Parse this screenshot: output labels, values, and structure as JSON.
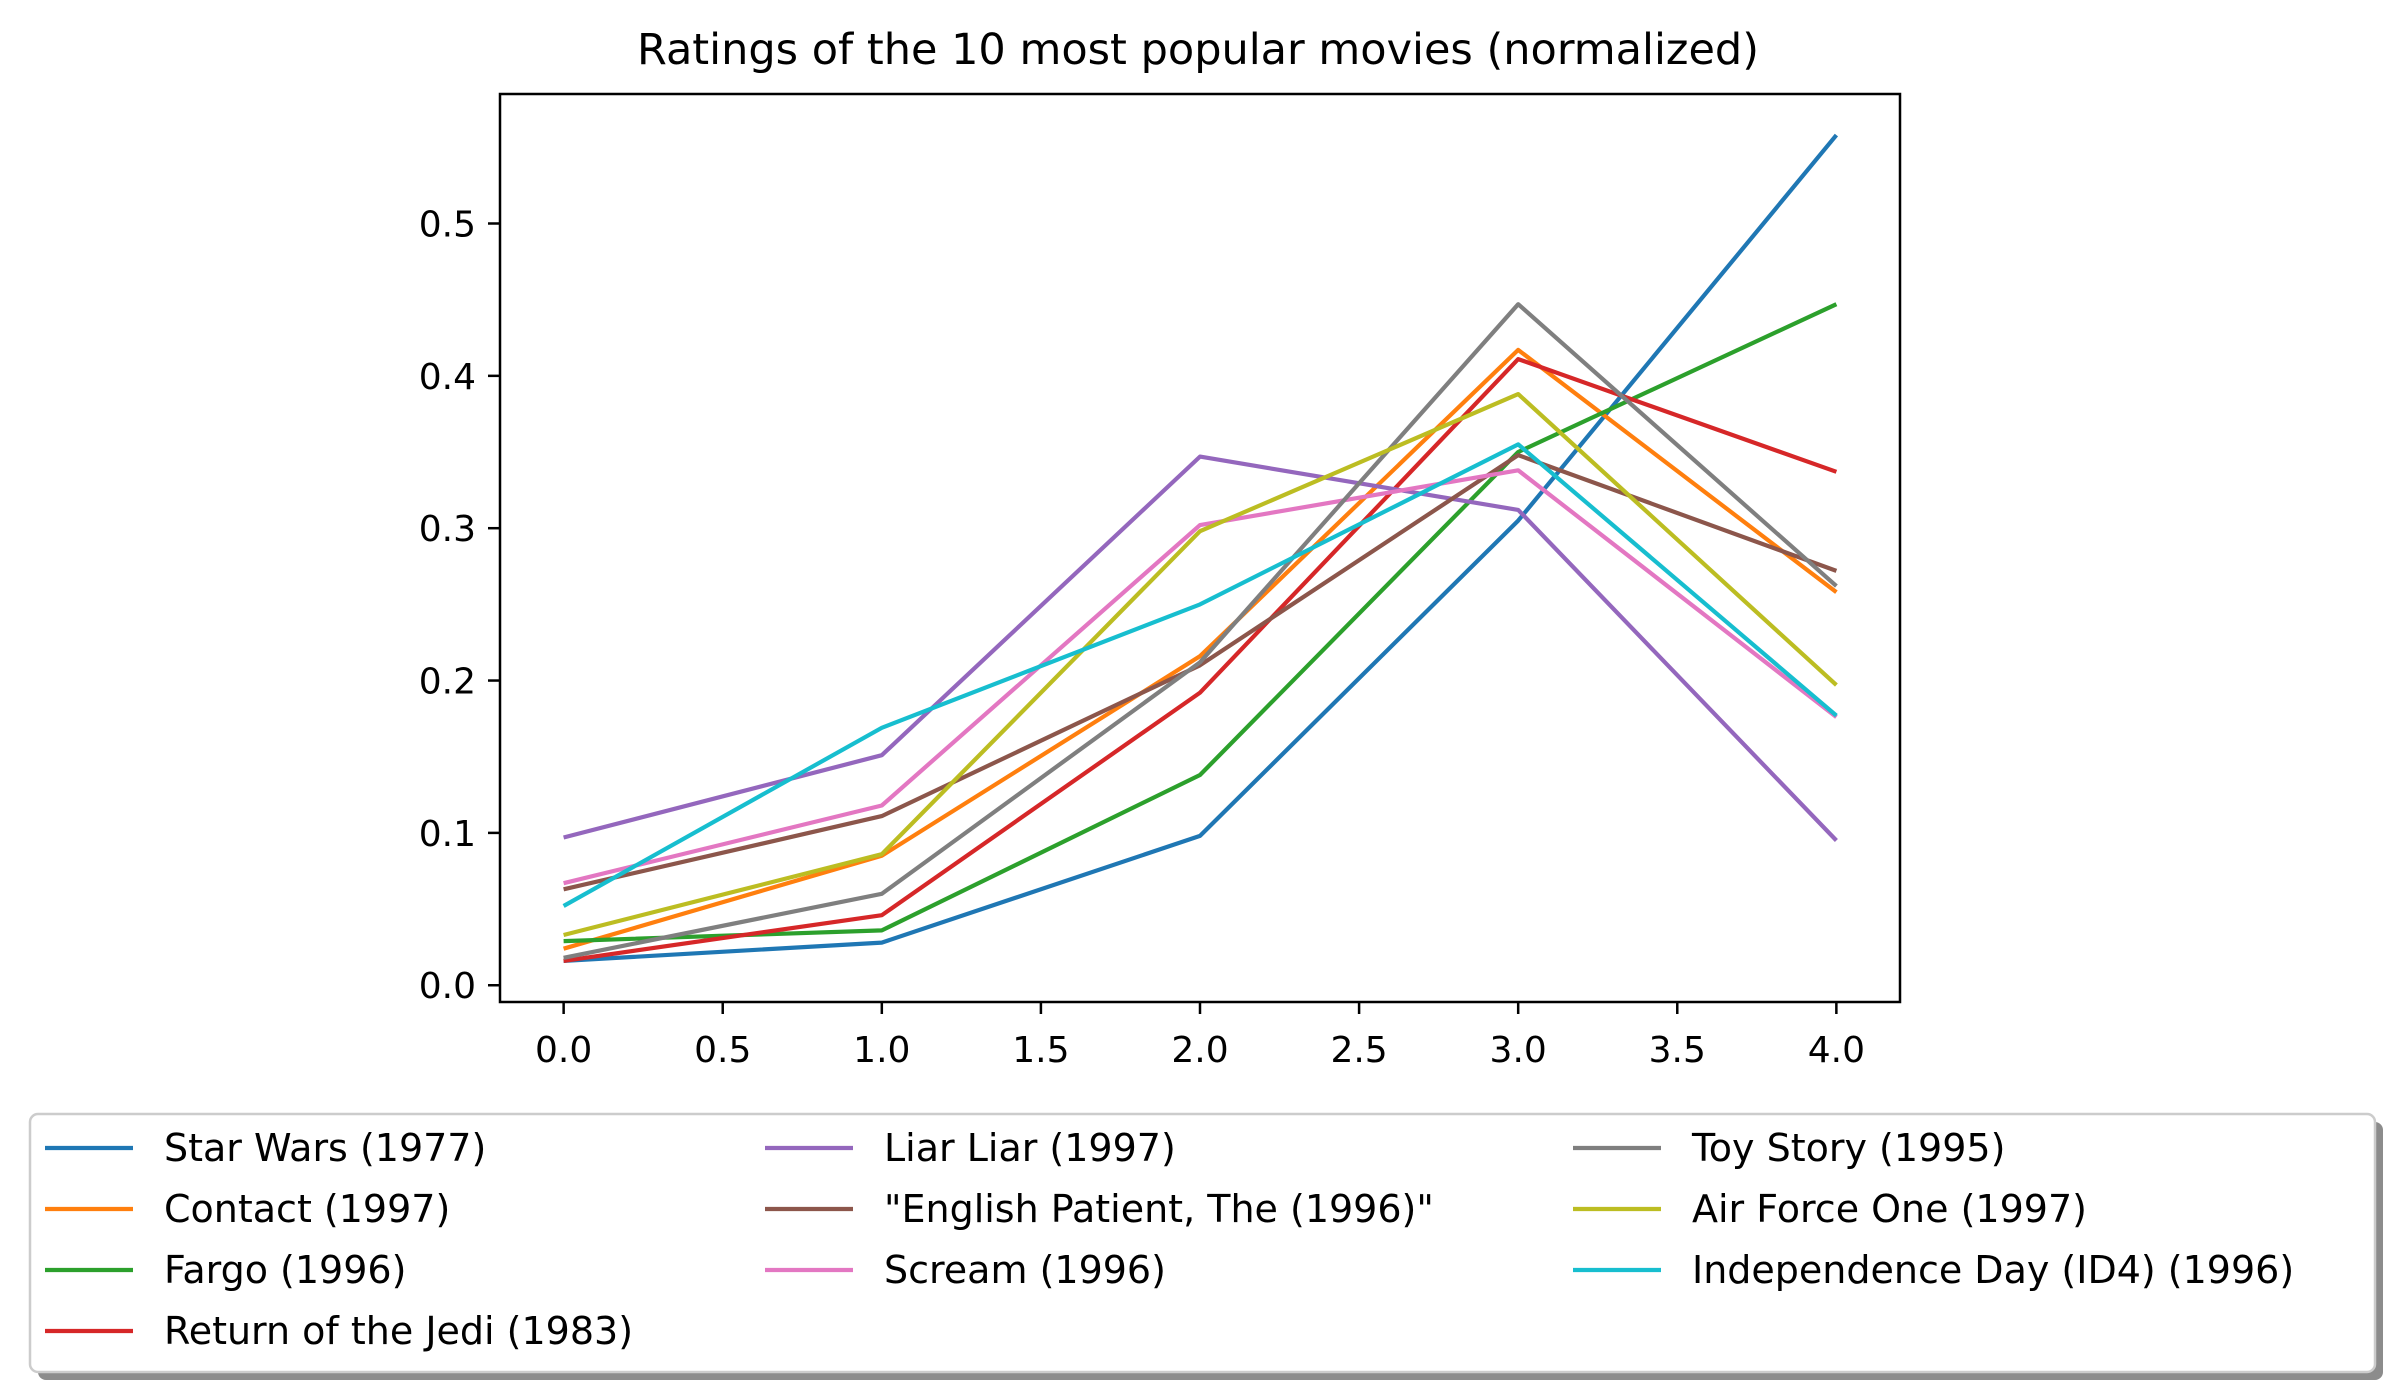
{
  "chart_data": {
    "type": "line",
    "title": "Ratings of the 10 most popular movies (normalized)",
    "xlabel": "",
    "ylabel": "",
    "xlim": [
      -0.2,
      4.2
    ],
    "ylim": [
      -0.011,
      0.585
    ],
    "x": [
      0,
      1,
      2,
      3,
      4
    ],
    "xticks": [
      0.0,
      0.5,
      1.0,
      1.5,
      2.0,
      2.5,
      3.0,
      3.5,
      4.0
    ],
    "xtick_labels": [
      "0.0",
      "0.5",
      "1.0",
      "1.5",
      "2.0",
      "2.5",
      "3.0",
      "3.5",
      "4.0"
    ],
    "yticks": [
      0.0,
      0.1,
      0.2,
      0.3,
      0.4,
      0.5
    ],
    "ytick_labels": [
      "0.0",
      "0.1",
      "0.2",
      "0.3",
      "0.4",
      "0.5"
    ],
    "grid": false,
    "legend_position": "below chart, 3 columns",
    "series": [
      {
        "name": "Star Wars (1977)",
        "color": "#1f77b4",
        "values": [
          0.016,
          0.028,
          0.098,
          0.305,
          0.558
        ]
      },
      {
        "name": "Contact (1997)",
        "color": "#ff7f0e",
        "values": [
          0.024,
          0.085,
          0.216,
          0.417,
          0.258
        ]
      },
      {
        "name": "Fargo (1996)",
        "color": "#2ca02c",
        "values": [
          0.029,
          0.036,
          0.138,
          0.35,
          0.447
        ]
      },
      {
        "name": "Return of the Jedi (1983)",
        "color": "#d62728",
        "values": [
          0.016,
          0.046,
          0.192,
          0.411,
          0.337
        ]
      },
      {
        "name": "Liar Liar (1997)",
        "color": "#9467bd",
        "values": [
          0.097,
          0.151,
          0.347,
          0.312,
          0.095
        ]
      },
      {
        "name": "\"English Patient, The (1996)\"",
        "color": "#8c564b",
        "values": [
          0.063,
          0.111,
          0.21,
          0.348,
          0.272
        ]
      },
      {
        "name": "Scream (1996)",
        "color": "#e377c2",
        "values": [
          0.067,
          0.118,
          0.302,
          0.338,
          0.176
        ]
      },
      {
        "name": "Toy Story (1995)",
        "color": "#7f7f7f",
        "values": [
          0.018,
          0.06,
          0.212,
          0.447,
          0.262
        ]
      },
      {
        "name": "Air Force One (1997)",
        "color": "#bcbd22",
        "values": [
          0.033,
          0.086,
          0.298,
          0.388,
          0.197
        ]
      },
      {
        "name": "Independence Day (ID4) (1996)",
        "color": "#17becf",
        "values": [
          0.052,
          0.169,
          0.25,
          0.355,
          0.177
        ]
      }
    ]
  }
}
